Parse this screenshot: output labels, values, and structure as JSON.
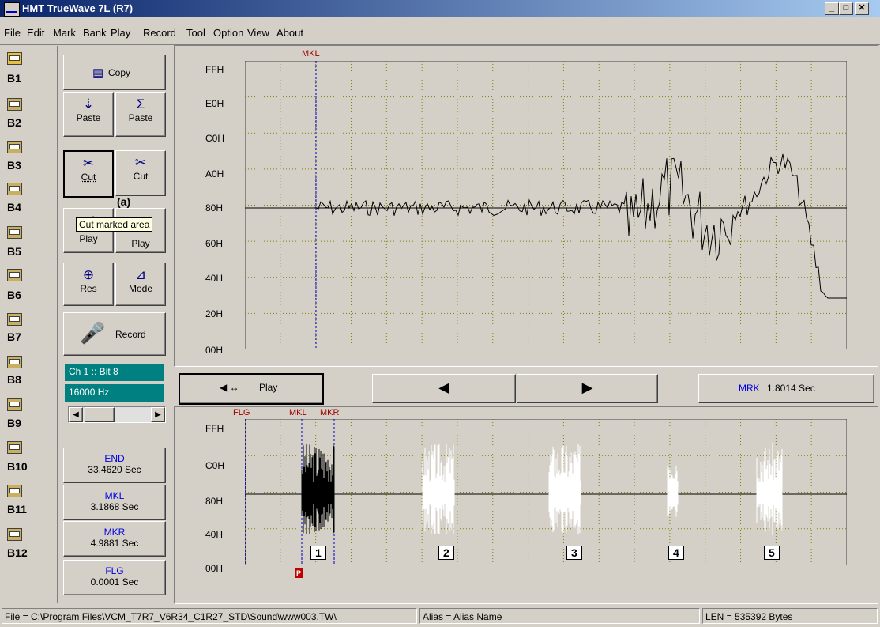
{
  "window": {
    "title": "HMT TrueWave 7L (R7)",
    "min": "_",
    "max": "□",
    "close": "✕"
  },
  "menu": [
    "File",
    "Edit",
    "Mark",
    "Bank",
    "Play",
    "Record",
    "Tool",
    "Option",
    "View",
    "About"
  ],
  "banks": [
    "B1",
    "B2",
    "B3",
    "B4",
    "B5",
    "B6",
    "B7",
    "B8",
    "B9",
    "B10",
    "B11",
    "B12"
  ],
  "toolbar": {
    "copy": "Copy",
    "paste1": "Paste",
    "paste2": "Paste",
    "paste2_symbol": "Σ",
    "cut1": "Cut",
    "cut2": "Cut",
    "play1": "Play",
    "play2": "Play",
    "res": "Res",
    "mode": "Mode",
    "record": "Record"
  },
  "annotation": "(a)",
  "tooltip": "Cut marked area",
  "channel": {
    "info": "Ch 1 :: Bit 8",
    "rate": "16000 Hz"
  },
  "info": {
    "end": {
      "label": "END",
      "value": "33.4620 Sec"
    },
    "mkl": {
      "label": "MKL",
      "value": "3.1868 Sec"
    },
    "mkr": {
      "label": "MKR",
      "value": "4.9881 Sec"
    },
    "flg": {
      "label": "FLG",
      "value": "0.0001 Sec"
    }
  },
  "upper_plot": {
    "y_labels": [
      "FFH",
      "E0H",
      "C0H",
      "A0H",
      "80H",
      "60H",
      "40H",
      "20H",
      "00H"
    ],
    "marker": "MKL"
  },
  "controls": {
    "play": "Play",
    "prev": "◀",
    "next": "▶",
    "mrk_label": "MRK",
    "mrk_value": "1.8014 Sec"
  },
  "lower_plot": {
    "y_labels": [
      "FFH",
      "C0H",
      "80H",
      "40H",
      "00H"
    ],
    "markers": {
      "flg": "FLG",
      "mkl": "MKL",
      "mkr": "MKR",
      "p": "P"
    },
    "segments": [
      "1",
      "2",
      "3",
      "4",
      "5"
    ]
  },
  "status": {
    "file": "File = C:\\Program Files\\VCM_T7R7_V6R34_C1R27_STD\\Sound\\www003.TW\\",
    "alias": "Alias = Alias Name",
    "len": "LEN = 535392 Bytes"
  }
}
